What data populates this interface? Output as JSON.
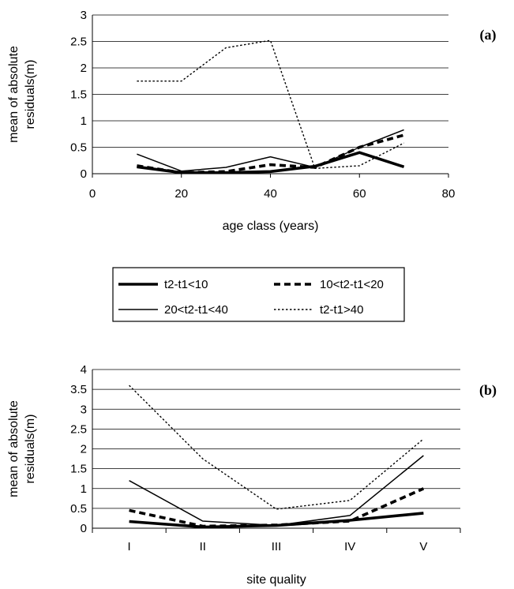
{
  "legend": [
    {
      "label": "t2-t1<10",
      "style": "thick-solid"
    },
    {
      "label": "10<t2-t1<20",
      "style": "thick-dashed"
    },
    {
      "label": "20<t2-t1<40",
      "style": "thin-solid"
    },
    {
      "label": "t2-t1>40",
      "style": "thin-dotted"
    }
  ],
  "chart_data": [
    {
      "type": "line",
      "panel_label": "(a)",
      "xlabel": "age class (years)",
      "ylabel": "mean of absolute residuals(m)",
      "xlim": [
        0,
        80
      ],
      "ylim": [
        0,
        3
      ],
      "xticks": [
        0,
        20,
        40,
        60,
        80
      ],
      "yticks": [
        0,
        0.5,
        1,
        1.5,
        2,
        2.5,
        3
      ],
      "ytick_labels": [
        "0",
        "0.5",
        "1",
        "1.5",
        "2",
        "2.5",
        "3"
      ],
      "grid": "horizontal",
      "x": [
        10,
        20,
        30,
        40,
        50,
        60,
        70
      ],
      "series": [
        {
          "name": "t2-t1<10",
          "values": [
            0.13,
            0.02,
            0.02,
            0.04,
            0.14,
            0.4,
            0.13
          ]
        },
        {
          "name": "10<t2-t1<20",
          "values": [
            0.15,
            0.02,
            0.04,
            0.17,
            0.12,
            0.5,
            0.73
          ]
        },
        {
          "name": "20<t2-t1<40",
          "values": [
            0.37,
            0.05,
            0.12,
            0.32,
            0.12,
            0.5,
            0.83
          ]
        },
        {
          "name": "t2-t1>40",
          "values": [
            1.75,
            1.75,
            2.38,
            2.52,
            0.1,
            0.15,
            0.58
          ]
        }
      ]
    },
    {
      "type": "line",
      "panel_label": "(b)",
      "xlabel": "site quality",
      "ylabel": "mean of absolute residuals(m)",
      "categories": [
        "I",
        "II",
        "III",
        "IV",
        "V"
      ],
      "ylim": [
        0,
        4
      ],
      "yticks": [
        0,
        0.5,
        1,
        1.5,
        2,
        2.5,
        3,
        3.5,
        4
      ],
      "ytick_labels": [
        "0",
        "0.5",
        "1",
        "1.5",
        "2",
        "2.5",
        "3",
        "3.5",
        "4"
      ],
      "grid": "horizontal",
      "series": [
        {
          "name": "t2-t1<10",
          "values": [
            0.17,
            0.03,
            0.07,
            0.2,
            0.38
          ]
        },
        {
          "name": "10<t2-t1<20",
          "values": [
            0.45,
            0.05,
            0.08,
            0.18,
            1.0
          ]
        },
        {
          "name": "20<t2-t1<40",
          "values": [
            1.2,
            0.18,
            0.07,
            0.32,
            1.83
          ]
        },
        {
          "name": "t2-t1>40",
          "values": [
            3.6,
            1.75,
            0.48,
            0.7,
            2.25
          ]
        }
      ]
    }
  ]
}
